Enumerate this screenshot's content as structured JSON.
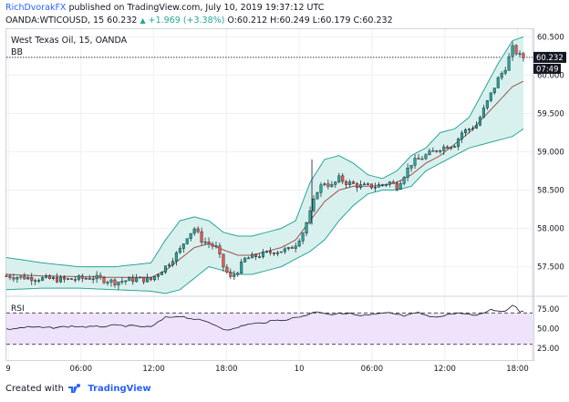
{
  "header": {
    "author": "RichDvorakFX",
    "published": "published on TradingView.com, July 10, 2019 19:37:12 UTC"
  },
  "quote": {
    "symbol": "OANDA:WTICOUSD, 15",
    "last": "60.232",
    "change": "+1.969 (+3.38%)",
    "ohlc": "O:60.212 H:60.249 L:60.179 C:60.232"
  },
  "legend": {
    "title": "West Texas Oil, 15, OANDA",
    "indicator": "BB"
  },
  "rsi_label": "RSI",
  "footer": {
    "created": "Created with",
    "brand": "TradingView"
  },
  "colors": {
    "up": "#26a69a",
    "down": "#ef5350",
    "band_fill": "#d8f1ee",
    "band_line": "#2ba39b",
    "basis": "#a0524d",
    "rsi_fill": "#efe3fb"
  },
  "chart_data": {
    "type": "candlestick",
    "price_axis_ticks": [
      "60.500",
      "60.000",
      "59.500",
      "59.000",
      "58.500",
      "58.000",
      "57.500"
    ],
    "price_range": [
      57.15,
      60.6
    ],
    "last_price_label": "60.232",
    "countdown_label": "07:49",
    "time_axis_ticks": [
      "9",
      "06:00",
      "12:00",
      "18:00",
      "10",
      "06:00",
      "12:00",
      "18:00"
    ],
    "rsi_axis_ticks": [
      "75.00",
      "50.00",
      "25.00"
    ],
    "rsi_range": [
      10,
      90
    ],
    "rsi_levels": [
      70,
      30
    ],
    "price_path": [
      [
        0,
        57.38
      ],
      [
        8,
        57.35
      ],
      [
        16,
        57.33
      ],
      [
        24,
        57.36
      ],
      [
        30,
        57.3
      ],
      [
        36,
        57.34
      ],
      [
        40,
        57.33
      ],
      [
        44,
        57.5
      ],
      [
        48,
        57.72
      ],
      [
        50,
        57.9
      ],
      [
        52,
        58.0
      ],
      [
        54,
        57.85
      ],
      [
        56,
        57.8
      ],
      [
        58,
        57.75
      ],
      [
        60,
        57.5
      ],
      [
        62,
        57.35
      ],
      [
        64,
        57.45
      ],
      [
        66,
        57.6
      ],
      [
        70,
        57.65
      ],
      [
        74,
        57.7
      ],
      [
        78,
        57.72
      ],
      [
        80,
        57.8
      ],
      [
        82,
        57.95
      ],
      [
        84,
        58.2
      ],
      [
        86,
        58.5
      ],
      [
        88,
        58.6
      ],
      [
        90,
        58.55
      ],
      [
        92,
        58.65
      ],
      [
        94,
        58.6
      ],
      [
        98,
        58.55
      ],
      [
        102,
        58.55
      ],
      [
        106,
        58.6
      ],
      [
        108,
        58.55
      ],
      [
        110,
        58.7
      ],
      [
        112,
        58.85
      ],
      [
        114,
        58.9
      ],
      [
        116,
        58.95
      ],
      [
        118,
        59.0
      ],
      [
        120,
        59.05
      ],
      [
        124,
        59.1
      ],
      [
        126,
        59.25
      ],
      [
        128,
        59.3
      ],
      [
        130,
        59.35
      ],
      [
        132,
        59.55
      ],
      [
        134,
        59.75
      ],
      [
        136,
        59.95
      ],
      [
        138,
        60.1
      ],
      [
        140,
        60.35
      ],
      [
        141,
        60.3
      ],
      [
        142,
        60.25
      ],
      [
        143,
        60.23
      ]
    ],
    "bb_upper": [
      [
        0,
        57.62
      ],
      [
        10,
        57.55
      ],
      [
        20,
        57.5
      ],
      [
        30,
        57.5
      ],
      [
        40,
        57.55
      ],
      [
        44,
        57.85
      ],
      [
        48,
        58.1
      ],
      [
        52,
        58.15
      ],
      [
        56,
        58.1
      ],
      [
        60,
        57.95
      ],
      [
        64,
        57.9
      ],
      [
        68,
        57.9
      ],
      [
        72,
        57.95
      ],
      [
        76,
        58.0
      ],
      [
        80,
        58.1
      ],
      [
        84,
        58.6
      ],
      [
        88,
        58.9
      ],
      [
        92,
        58.95
      ],
      [
        96,
        58.85
      ],
      [
        100,
        58.7
      ],
      [
        104,
        58.65
      ],
      [
        108,
        58.75
      ],
      [
        112,
        58.95
      ],
      [
        116,
        59.05
      ],
      [
        120,
        59.25
      ],
      [
        124,
        59.3
      ],
      [
        128,
        59.45
      ],
      [
        132,
        59.8
      ],
      [
        136,
        60.15
      ],
      [
        140,
        60.45
      ],
      [
        143,
        60.5
      ]
    ],
    "bb_basis": [
      [
        0,
        57.4
      ],
      [
        10,
        57.38
      ],
      [
        20,
        57.37
      ],
      [
        30,
        57.36
      ],
      [
        40,
        57.36
      ],
      [
        44,
        57.45
      ],
      [
        48,
        57.6
      ],
      [
        52,
        57.75
      ],
      [
        56,
        57.8
      ],
      [
        60,
        57.72
      ],
      [
        64,
        57.65
      ],
      [
        68,
        57.65
      ],
      [
        72,
        57.7
      ],
      [
        76,
        57.75
      ],
      [
        80,
        57.85
      ],
      [
        84,
        58.1
      ],
      [
        88,
        58.35
      ],
      [
        92,
        58.5
      ],
      [
        96,
        58.55
      ],
      [
        100,
        58.55
      ],
      [
        104,
        58.56
      ],
      [
        108,
        58.6
      ],
      [
        112,
        58.7
      ],
      [
        116,
        58.85
      ],
      [
        120,
        58.95
      ],
      [
        124,
        59.1
      ],
      [
        128,
        59.25
      ],
      [
        132,
        59.45
      ],
      [
        136,
        59.65
      ],
      [
        140,
        59.85
      ],
      [
        143,
        59.92
      ]
    ],
    "bb_lower": [
      [
        0,
        57.2
      ],
      [
        10,
        57.22
      ],
      [
        20,
        57.22
      ],
      [
        30,
        57.2
      ],
      [
        40,
        57.18
      ],
      [
        44,
        57.15
      ],
      [
        48,
        57.2
      ],
      [
        52,
        57.35
      ],
      [
        56,
        57.5
      ],
      [
        60,
        57.45
      ],
      [
        64,
        57.4
      ],
      [
        68,
        57.4
      ],
      [
        72,
        57.45
      ],
      [
        76,
        57.5
      ],
      [
        80,
        57.6
      ],
      [
        84,
        57.7
      ],
      [
        88,
        57.85
      ],
      [
        92,
        58.1
      ],
      [
        96,
        58.3
      ],
      [
        100,
        58.45
      ],
      [
        104,
        58.5
      ],
      [
        108,
        58.5
      ],
      [
        112,
        58.55
      ],
      [
        116,
        58.75
      ],
      [
        120,
        58.85
      ],
      [
        124,
        58.95
      ],
      [
        128,
        59.05
      ],
      [
        132,
        59.1
      ],
      [
        136,
        59.15
      ],
      [
        140,
        59.2
      ],
      [
        143,
        59.3
      ]
    ],
    "rsi_path": [
      [
        0,
        49
      ],
      [
        6,
        52
      ],
      [
        12,
        51
      ],
      [
        18,
        53
      ],
      [
        24,
        52
      ],
      [
        30,
        54
      ],
      [
        36,
        53
      ],
      [
        40,
        52
      ],
      [
        44,
        64
      ],
      [
        48,
        66
      ],
      [
        52,
        62
      ],
      [
        56,
        58
      ],
      [
        60,
        50
      ],
      [
        62,
        48
      ],
      [
        66,
        55
      ],
      [
        70,
        57
      ],
      [
        74,
        60
      ],
      [
        78,
        62
      ],
      [
        82,
        66
      ],
      [
        86,
        72
      ],
      [
        90,
        68
      ],
      [
        94,
        70
      ],
      [
        98,
        66
      ],
      [
        102,
        68
      ],
      [
        106,
        70
      ],
      [
        110,
        66
      ],
      [
        114,
        70
      ],
      [
        118,
        64
      ],
      [
        122,
        68
      ],
      [
        126,
        70
      ],
      [
        130,
        66
      ],
      [
        134,
        74
      ],
      [
        138,
        72
      ],
      [
        140,
        80
      ],
      [
        141,
        78
      ],
      [
        142,
        72
      ],
      [
        143,
        73
      ]
    ]
  }
}
